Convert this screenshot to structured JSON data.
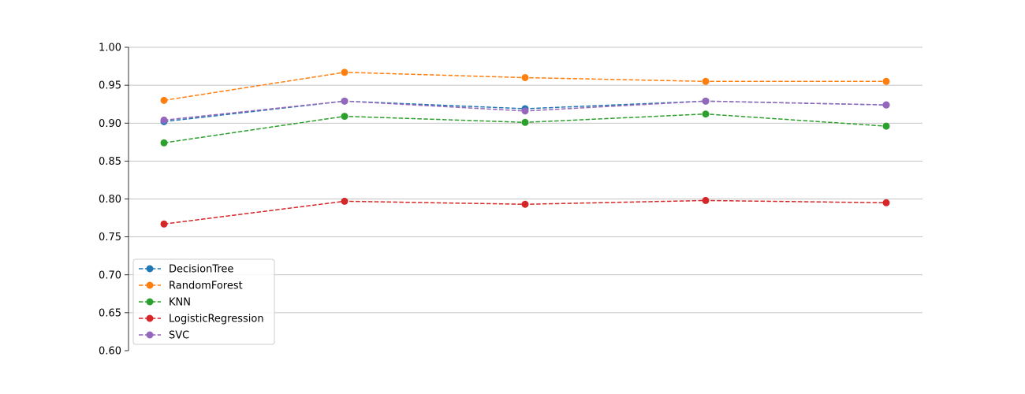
{
  "chart_data": {
    "type": "line",
    "title": "",
    "xlabel": "",
    "ylabel": "",
    "x": [
      1,
      2,
      3,
      4,
      5
    ],
    "ylim": [
      0.6,
      1.0
    ],
    "yticks": [
      "0.60",
      "0.65",
      "0.70",
      "0.75",
      "0.80",
      "0.85",
      "0.90",
      "0.95",
      "1.00"
    ],
    "grid": "horizontal",
    "line_style": "dashed",
    "marker": "circle",
    "legend_position": "lower-left",
    "series": [
      {
        "name": "DecisionTree",
        "color": "#1f77b4",
        "values": [
          0.902,
          0.929,
          0.919,
          0.929,
          0.924
        ]
      },
      {
        "name": "RandomForest",
        "color": "#ff7f0e",
        "values": [
          0.93,
          0.967,
          0.96,
          0.955,
          0.955
        ]
      },
      {
        "name": "KNN",
        "color": "#2ca02c",
        "values": [
          0.874,
          0.909,
          0.901,
          0.912,
          0.896
        ]
      },
      {
        "name": "LogisticRegression",
        "color": "#d62728",
        "values": [
          0.767,
          0.797,
          0.793,
          0.798,
          0.795
        ]
      },
      {
        "name": "SVC",
        "color": "#9467bd",
        "values": [
          0.904,
          0.929,
          0.916,
          0.929,
          0.924
        ]
      }
    ]
  }
}
